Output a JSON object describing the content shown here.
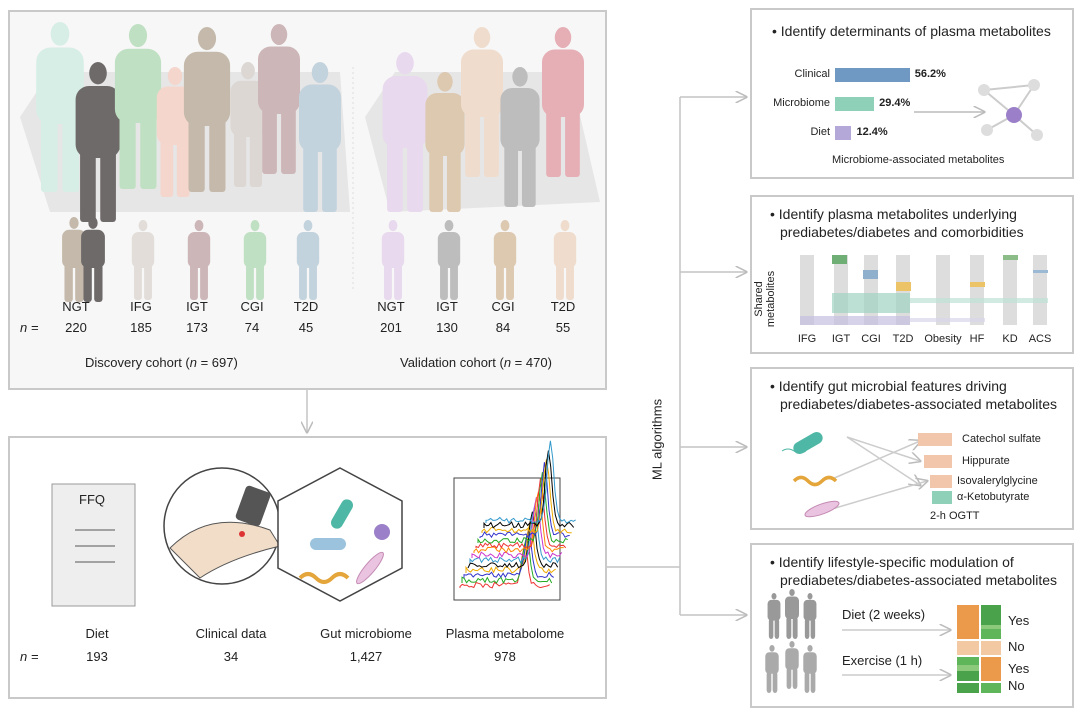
{
  "discovery": {
    "groups": [
      "NGT",
      "IFG",
      "IGT",
      "CGI",
      "T2D"
    ],
    "n": [
      "220",
      "185",
      "173",
      "74",
      "45"
    ],
    "label": "Discovery cohort (",
    "n_italic": "n",
    "label_end": " = 697)"
  },
  "validation": {
    "groups": [
      "NGT",
      "IGT",
      "CGI",
      "T2D"
    ],
    "n": [
      "201",
      "130",
      "84",
      "55"
    ],
    "label": "Validation cohort (",
    "n_italic": "n",
    "label_end": " = 470)"
  },
  "n_label": "n =",
  "data_types": {
    "ffq": "FFQ",
    "items": [
      {
        "label": "Diet",
        "n": "193"
      },
      {
        "label": "Clinical data",
        "n": "34"
      },
      {
        "label": "Gut microbiome",
        "n": "1,427"
      },
      {
        "label": "Plasma metabolome",
        "n": "978"
      }
    ]
  },
  "ml_label": "ML algorithms",
  "panel1": {
    "title": "• Identify determinants of plasma metabolites",
    "bars": [
      {
        "label": "Clinical",
        "value": 56.2,
        "text": "56.2%",
        "color": "#6f98c2"
      },
      {
        "label": "Microbiome",
        "value": 29.4,
        "text": "29.4%",
        "color": "#8fd0b8"
      },
      {
        "label": "Diet",
        "value": 12.4,
        "text": "12.4%",
        "color": "#b3a8d8"
      }
    ],
    "caption": "Microbiome-associated metabolites"
  },
  "panel2": {
    "title1": "• Identify plasma metabolites underlying",
    "title2": "prediabetes/diabetes and comorbidities",
    "ylabel1": "Shared",
    "ylabel2": "metabolites",
    "categories": [
      "IFG",
      "IGT",
      "CGI",
      "T2D",
      "Obesity",
      "HF",
      "KD",
      "ACS"
    ]
  },
  "panel3": {
    "title1": "• Identify gut microbial features driving",
    "title2": "prediabetes/diabetes-associated metabolites",
    "metabolites": [
      "Catechol sulfate",
      "Hippurate",
      "Isovalerylglycine",
      "α-Ketobutyrate"
    ],
    "caption": "2-h OGTT"
  },
  "panel4": {
    "title1": "• Identify lifestyle-specific modulation of",
    "title2": "prediabetes/diabetes-associated metabolites",
    "interventions": [
      "Diet (2 weeks)",
      "Exercise (1 h)"
    ],
    "outcomes": [
      "Yes",
      "No",
      "Yes",
      "No"
    ]
  }
}
